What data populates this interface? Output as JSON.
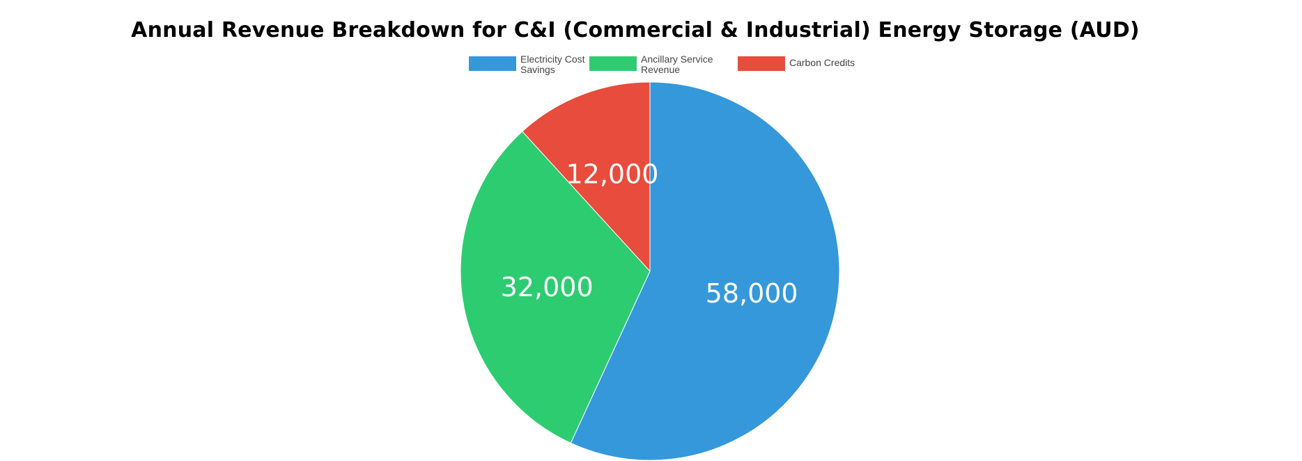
{
  "chart_data": {
    "type": "pie",
    "title": "Annual Revenue Breakdown for C&I (Commercial & Industrial) Energy Storage (AUD)",
    "categories": [
      "Electricity Cost\nSavings",
      "Ancillary Service\nRevenue",
      "Carbon Credits"
    ],
    "values": [
      58000,
      32000,
      12000
    ],
    "value_labels": [
      "58,000",
      "32,000",
      "12,000"
    ],
    "colors": [
      "#3498db",
      "#2ecc71",
      "#e74c3c"
    ],
    "legend_position": "top",
    "start_angle": "top, clockwise"
  }
}
